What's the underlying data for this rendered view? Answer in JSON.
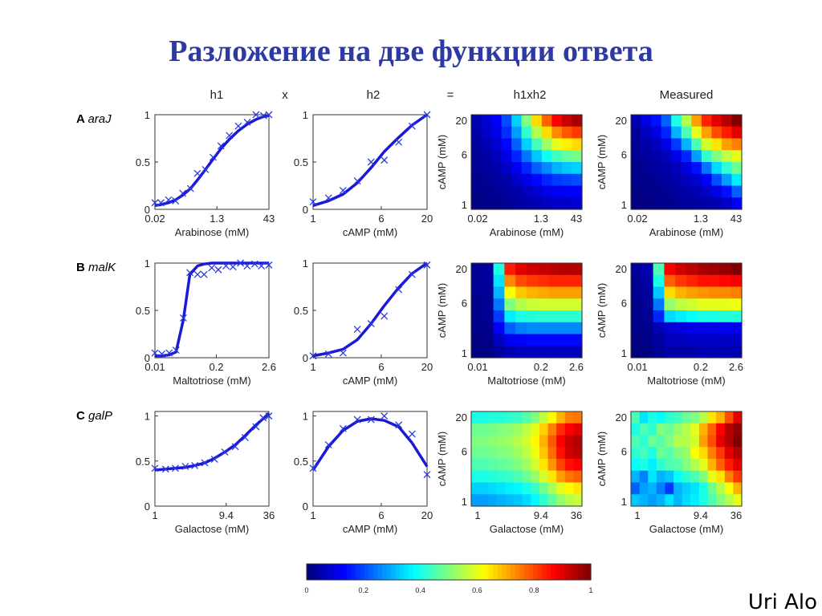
{
  "title": "Разложение на две функции ответа",
  "author": "Uri Alo",
  "column_headers": [
    "h1",
    "x",
    "h2",
    "=",
    "h1xh2",
    "Measured"
  ],
  "colors": {
    "title": "#2d3aa6",
    "curve": "#1a1ad6",
    "marker": "#2a3ae0"
  },
  "chart_data": [
    {
      "panel": "A",
      "gene": "araJ",
      "type": "line",
      "h1": {
        "xlabel": "Arabinose (mM)",
        "xticks": [
          "0.02",
          "1.3",
          "43"
        ],
        "yticks": [
          "0",
          "0.5",
          "1"
        ],
        "ylim": [
          0,
          1
        ],
        "x_scale": "log",
        "x": [
          0.02,
          0.03,
          0.05,
          0.08,
          0.13,
          0.22,
          0.35,
          0.6,
          1.0,
          1.7,
          3.0,
          5.5,
          10,
          18,
          30,
          43
        ],
        "curve": [
          0.04,
          0.05,
          0.07,
          0.1,
          0.15,
          0.22,
          0.31,
          0.42,
          0.53,
          0.64,
          0.74,
          0.83,
          0.9,
          0.95,
          0.98,
          0.99
        ],
        "measured": [
          0.07,
          0.07,
          0.1,
          0.09,
          0.17,
          0.22,
          0.38,
          0.42,
          0.55,
          0.67,
          0.78,
          0.88,
          0.92,
          1.0,
          0.99,
          1.0
        ]
      },
      "h2": {
        "xlabel": "cAMP (mM)",
        "xticks": [
          "1",
          "6",
          "20"
        ],
        "yticks": [
          "0",
          "0.5",
          "1"
        ],
        "ylim": [
          0,
          1
        ],
        "x_scale": "log",
        "x": [
          1,
          1.5,
          2.2,
          3.2,
          4.6,
          6.5,
          9.5,
          13.5,
          20
        ],
        "curve": [
          0.04,
          0.09,
          0.16,
          0.28,
          0.44,
          0.61,
          0.76,
          0.89,
          1.0
        ],
        "measured": [
          0.08,
          0.12,
          0.2,
          0.3,
          0.5,
          0.52,
          0.71,
          0.88,
          1.0
        ]
      },
      "h1xh2": {
        "ylabel": "cAMP (mM)",
        "xlabel": "Arabinose (mM)",
        "xticks": [
          "0.02",
          "1.3",
          "43"
        ],
        "yticks": [
          "20",
          "6",
          "1"
        ],
        "z": [
          [
            0.05,
            0.08,
            0.12,
            0.2,
            0.33,
            0.5,
            0.66,
            0.78,
            0.88,
            0.93,
            0.96
          ],
          [
            0.04,
            0.07,
            0.1,
            0.17,
            0.28,
            0.42,
            0.55,
            0.66,
            0.74,
            0.79,
            0.82
          ],
          [
            0.03,
            0.05,
            0.08,
            0.13,
            0.22,
            0.33,
            0.44,
            0.53,
            0.6,
            0.64,
            0.66
          ],
          [
            0.02,
            0.04,
            0.06,
            0.1,
            0.16,
            0.24,
            0.32,
            0.39,
            0.44,
            0.47,
            0.49
          ],
          [
            0.02,
            0.03,
            0.04,
            0.07,
            0.11,
            0.16,
            0.22,
            0.26,
            0.3,
            0.32,
            0.33
          ],
          [
            0.01,
            0.02,
            0.03,
            0.04,
            0.07,
            0.1,
            0.13,
            0.16,
            0.18,
            0.19,
            0.2
          ],
          [
            0.01,
            0.01,
            0.02,
            0.03,
            0.04,
            0.06,
            0.08,
            0.1,
            0.11,
            0.12,
            0.12
          ],
          [
            0.0,
            0.01,
            0.01,
            0.02,
            0.03,
            0.04,
            0.05,
            0.06,
            0.07,
            0.07,
            0.08
          ]
        ]
      },
      "measured": {
        "ylabel": "cAMP (mM)",
        "xlabel": "Arabinose (mM)",
        "xticks": [
          "0.02",
          "1.3",
          "43"
        ],
        "yticks": [
          "20",
          "6",
          "1"
        ],
        "z": [
          [
            0.05,
            0.1,
            0.14,
            0.22,
            0.4,
            0.55,
            0.72,
            0.84,
            0.9,
            0.95,
            1.0
          ],
          [
            0.03,
            0.06,
            0.1,
            0.16,
            0.3,
            0.45,
            0.6,
            0.72,
            0.8,
            0.85,
            0.9
          ],
          [
            0.02,
            0.04,
            0.06,
            0.1,
            0.18,
            0.3,
            0.45,
            0.58,
            0.65,
            0.72,
            0.75
          ],
          [
            0.02,
            0.03,
            0.04,
            0.06,
            0.1,
            0.16,
            0.28,
            0.42,
            0.5,
            0.56,
            0.6
          ],
          [
            0.01,
            0.02,
            0.03,
            0.04,
            0.06,
            0.09,
            0.14,
            0.24,
            0.34,
            0.42,
            0.48
          ],
          [
            0.01,
            0.01,
            0.02,
            0.03,
            0.04,
            0.06,
            0.08,
            0.12,
            0.2,
            0.28,
            0.36
          ],
          [
            0.0,
            0.01,
            0.01,
            0.02,
            0.03,
            0.04,
            0.05,
            0.07,
            0.1,
            0.14,
            0.22
          ],
          [
            0.0,
            0.0,
            0.01,
            0.01,
            0.02,
            0.03,
            0.03,
            0.04,
            0.05,
            0.07,
            0.12
          ]
        ]
      }
    },
    {
      "panel": "B",
      "gene": "malK",
      "type": "line",
      "h1": {
        "xlabel": "Maltotriose (mM)",
        "xticks": [
          "0.01",
          "0.2",
          "2.6"
        ],
        "yticks": [
          "0",
          "0.5",
          "1"
        ],
        "ylim": [
          0,
          1
        ],
        "x_scale": "log",
        "x": [
          0.01,
          0.014,
          0.02,
          0.028,
          0.04,
          0.055,
          0.08,
          0.11,
          0.16,
          0.22,
          0.32,
          0.45,
          0.65,
          0.9,
          1.3,
          1.8,
          2.6
        ],
        "curve": [
          0.02,
          0.02,
          0.03,
          0.06,
          0.4,
          0.88,
          0.97,
          0.99,
          1.0,
          1.0,
          1.0,
          1.0,
          1.0,
          1.0,
          1.0,
          1.0,
          1.0
        ],
        "measured": [
          0.05,
          0.04,
          0.05,
          0.08,
          0.42,
          0.9,
          0.88,
          0.88,
          0.95,
          0.93,
          0.97,
          0.96,
          1.0,
          0.97,
          0.99,
          0.97,
          0.98
        ]
      },
      "h2": {
        "xlabel": "cAMP (mM)",
        "xticks": [
          "1",
          "6",
          "20"
        ],
        "yticks": [
          "0",
          "0.5",
          "1"
        ],
        "ylim": [
          0,
          1
        ],
        "x_scale": "log",
        "x": [
          1,
          1.5,
          2.2,
          3.2,
          4.6,
          6.5,
          9.5,
          13.5,
          20
        ],
        "curve": [
          0.02,
          0.05,
          0.09,
          0.19,
          0.36,
          0.55,
          0.74,
          0.89,
          1.0
        ],
        "measured": [
          0.02,
          0.04,
          0.05,
          0.3,
          0.36,
          0.44,
          0.72,
          0.88,
          0.98
        ]
      },
      "h1xh2": {
        "ylabel": "cAMP (mM)",
        "xlabel": "Maltotriose (mM)",
        "xticks": [
          "0.01",
          "0.2",
          "2.6"
        ],
        "yticks": [
          "20",
          "6",
          "1"
        ],
        "z": [
          [
            0.02,
            0.03,
            0.4,
            0.85,
            0.9,
            0.92,
            0.93,
            0.94,
            0.95,
            0.95
          ],
          [
            0.02,
            0.03,
            0.35,
            0.74,
            0.8,
            0.82,
            0.83,
            0.84,
            0.84,
            0.84
          ],
          [
            0.02,
            0.02,
            0.3,
            0.62,
            0.68,
            0.7,
            0.71,
            0.72,
            0.72,
            0.72
          ],
          [
            0.01,
            0.02,
            0.24,
            0.5,
            0.55,
            0.57,
            0.58,
            0.58,
            0.58,
            0.58
          ],
          [
            0.01,
            0.02,
            0.18,
            0.36,
            0.4,
            0.41,
            0.42,
            0.42,
            0.42,
            0.42
          ],
          [
            0.01,
            0.01,
            0.12,
            0.22,
            0.25,
            0.26,
            0.26,
            0.26,
            0.26,
            0.26
          ],
          [
            0.0,
            0.01,
            0.06,
            0.11,
            0.12,
            0.13,
            0.13,
            0.13,
            0.13,
            0.13
          ],
          [
            0.0,
            0.0,
            0.03,
            0.05,
            0.06,
            0.06,
            0.06,
            0.06,
            0.06,
            0.06
          ]
        ]
      },
      "measured": {
        "ylabel": "cAMP (mM)",
        "xlabel": "Maltotriose (mM)",
        "xticks": [
          "0.01",
          "0.2",
          "2.6"
        ],
        "yticks": [
          "20",
          "6",
          "1"
        ],
        "z": [
          [
            0.03,
            0.05,
            0.45,
            0.88,
            0.92,
            0.94,
            0.96,
            0.97,
            0.98,
            1.0
          ],
          [
            0.02,
            0.04,
            0.4,
            0.78,
            0.82,
            0.84,
            0.86,
            0.86,
            0.87,
            0.88
          ],
          [
            0.02,
            0.03,
            0.32,
            0.66,
            0.7,
            0.72,
            0.73,
            0.74,
            0.74,
            0.75
          ],
          [
            0.01,
            0.02,
            0.24,
            0.52,
            0.56,
            0.58,
            0.6,
            0.6,
            0.6,
            0.61
          ],
          [
            0.01,
            0.02,
            0.16,
            0.34,
            0.36,
            0.38,
            0.4,
            0.4,
            0.41,
            0.41
          ],
          [
            0.01,
            0.01,
            0.05,
            0.08,
            0.09,
            0.1,
            0.1,
            0.1,
            0.11,
            0.11
          ],
          [
            0.0,
            0.01,
            0.03,
            0.06,
            0.06,
            0.07,
            0.07,
            0.07,
            0.07,
            0.07
          ],
          [
            0.0,
            0.0,
            0.02,
            0.04,
            0.04,
            0.04,
            0.05,
            0.05,
            0.05,
            0.05
          ]
        ]
      }
    },
    {
      "panel": "C",
      "gene": "galP",
      "type": "line",
      "h1": {
        "xlabel": "Galactose (mM)",
        "xticks": [
          "1",
          "9.4",
          "36"
        ],
        "yticks": [
          "0",
          "0.5",
          "1"
        ],
        "ylim": [
          0,
          1.05
        ],
        "x_scale": "log",
        "x": [
          1,
          1.4,
          1.9,
          2.6,
          3.5,
          4.8,
          6.5,
          9.0,
          12.5,
          17,
          24,
          30,
          36
        ],
        "curve": [
          0.4,
          0.41,
          0.42,
          0.43,
          0.45,
          0.48,
          0.53,
          0.6,
          0.68,
          0.78,
          0.9,
          0.97,
          1.03
        ],
        "measured": [
          0.42,
          0.41,
          0.42,
          0.44,
          0.45,
          0.48,
          0.52,
          0.6,
          0.66,
          0.76,
          0.88,
          0.98,
          1.0
        ]
      },
      "h2": {
        "xlabel": "cAMP (mM)",
        "xticks": [
          "1",
          "6",
          "20"
        ],
        "yticks": [
          "0",
          "0.5",
          "1"
        ],
        "ylim": [
          0,
          1.05
        ],
        "x_scale": "log",
        "x": [
          1,
          1.5,
          2.2,
          3.2,
          4.6,
          6.5,
          9.5,
          13.5,
          20
        ],
        "curve": [
          0.4,
          0.66,
          0.84,
          0.94,
          0.97,
          0.95,
          0.88,
          0.7,
          0.44
        ],
        "measured": [
          0.42,
          0.68,
          0.86,
          0.96,
          0.96,
          1.0,
          0.9,
          0.8,
          0.35
        ]
      },
      "h1xh2": {
        "ylabel": "cAMP (mM)",
        "xlabel": "Galactose (mM)",
        "xticks": [
          "1",
          "9.4",
          "36"
        ],
        "yticks": [
          "20",
          "6",
          "1"
        ],
        "z": [
          [
            0.4,
            0.4,
            0.41,
            0.41,
            0.42,
            0.43,
            0.46,
            0.5,
            0.56,
            0.63,
            0.7,
            0.75,
            0.76
          ],
          [
            0.48,
            0.48,
            0.49,
            0.5,
            0.51,
            0.53,
            0.56,
            0.6,
            0.67,
            0.75,
            0.83,
            0.88,
            0.9
          ],
          [
            0.5,
            0.5,
            0.51,
            0.52,
            0.53,
            0.55,
            0.58,
            0.63,
            0.7,
            0.79,
            0.88,
            0.93,
            0.95
          ],
          [
            0.48,
            0.48,
            0.49,
            0.5,
            0.51,
            0.53,
            0.56,
            0.61,
            0.68,
            0.77,
            0.86,
            0.92,
            0.94
          ],
          [
            0.45,
            0.45,
            0.46,
            0.47,
            0.48,
            0.5,
            0.53,
            0.58,
            0.65,
            0.73,
            0.81,
            0.86,
            0.88
          ],
          [
            0.4,
            0.4,
            0.41,
            0.42,
            0.43,
            0.45,
            0.48,
            0.52,
            0.58,
            0.65,
            0.72,
            0.76,
            0.78
          ],
          [
            0.33,
            0.33,
            0.34,
            0.35,
            0.36,
            0.37,
            0.4,
            0.43,
            0.48,
            0.54,
            0.6,
            0.63,
            0.65
          ],
          [
            0.28,
            0.28,
            0.29,
            0.3,
            0.31,
            0.32,
            0.34,
            0.37,
            0.42,
            0.47,
            0.52,
            0.55,
            0.57
          ]
        ]
      },
      "measured": {
        "ylabel": "cAMP (mM)",
        "xlabel": "Galactose (mM)",
        "xticks": [
          "1",
          "9.4",
          "36"
        ],
        "yticks": [
          "20",
          "6",
          "1"
        ],
        "z": [
          [
            0.45,
            0.35,
            0.4,
            0.38,
            0.42,
            0.44,
            0.48,
            0.5,
            0.55,
            0.65,
            0.7,
            0.8,
            0.9
          ],
          [
            0.4,
            0.45,
            0.42,
            0.5,
            0.48,
            0.52,
            0.55,
            0.6,
            0.7,
            0.78,
            0.88,
            0.95,
            0.98
          ],
          [
            0.45,
            0.42,
            0.48,
            0.46,
            0.5,
            0.55,
            0.55,
            0.58,
            0.72,
            0.8,
            0.9,
            0.95,
            1.0
          ],
          [
            0.42,
            0.44,
            0.4,
            0.48,
            0.46,
            0.5,
            0.52,
            0.62,
            0.66,
            0.75,
            0.82,
            0.9,
            0.95
          ],
          [
            0.38,
            0.4,
            0.36,
            0.42,
            0.45,
            0.46,
            0.5,
            0.55,
            0.6,
            0.7,
            0.78,
            0.85,
            0.9
          ],
          [
            0.3,
            0.25,
            0.35,
            0.3,
            0.32,
            0.38,
            0.42,
            0.45,
            0.5,
            0.6,
            0.65,
            0.75,
            0.82
          ],
          [
            0.22,
            0.28,
            0.3,
            0.25,
            0.18,
            0.3,
            0.33,
            0.35,
            0.4,
            0.48,
            0.55,
            0.62,
            0.7
          ],
          [
            0.32,
            0.3,
            0.28,
            0.3,
            0.35,
            0.3,
            0.34,
            0.36,
            0.4,
            0.45,
            0.5,
            0.55,
            0.6
          ]
        ]
      }
    }
  ],
  "colorbar": {
    "ticks": [
      "0",
      "0.2",
      "0.4",
      "0.6",
      "0.8",
      "1"
    ],
    "range": [
      0,
      1
    ],
    "colormap": "jet"
  }
}
